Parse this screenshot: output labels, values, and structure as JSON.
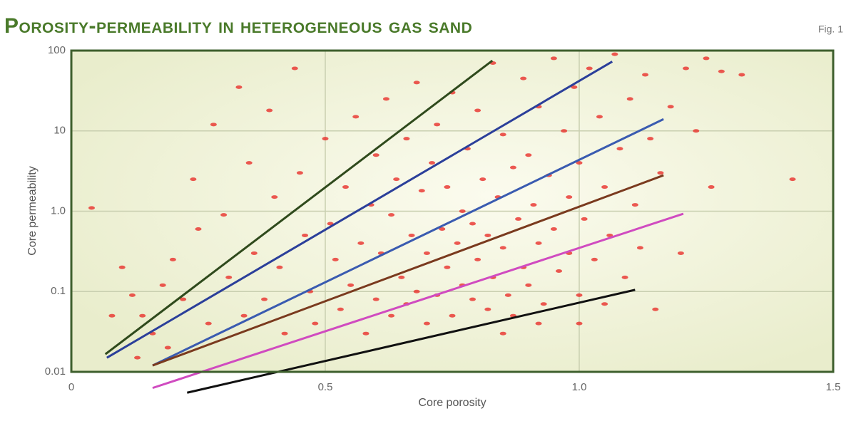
{
  "chart_data": {
    "type": "scatter",
    "title": "Porosity-permeability in heterogeneous gas sand",
    "figure_label": "Fig. 1",
    "x_label": "Core porosity",
    "y_label": "Core permeability",
    "xlim": [
      0,
      1.5
    ],
    "xticks": [
      0,
      0.5,
      {
        "value": 1,
        "label": "1.0"
      },
      {
        "value": 1.5,
        "label": "1.5"
      }
    ],
    "ylim": [
      0.01,
      100
    ],
    "yticks": [
      0.01,
      0.1,
      {
        "value": 1,
        "label": "1.0"
      },
      10,
      100
    ],
    "ylog": true,
    "grid": true,
    "series": [
      {
        "type": "scatter",
        "color": "#e8302a",
        "x": [
          0.04,
          0.1,
          0.12,
          0.14,
          0.16,
          0.18,
          0.2,
          0.22,
          0.24,
          0.25,
          0.27,
          0.28,
          0.3,
          0.31,
          0.33,
          0.34,
          0.35,
          0.36,
          0.38,
          0.39,
          0.4,
          0.41,
          0.42,
          0.44,
          0.45,
          0.46,
          0.47,
          0.48,
          0.5,
          0.51,
          0.52,
          0.53,
          0.54,
          0.55,
          0.56,
          0.57,
          0.58,
          0.59,
          0.6,
          0.6,
          0.61,
          0.62,
          0.63,
          0.63,
          0.64,
          0.65,
          0.66,
          0.66,
          0.67,
          0.68,
          0.68,
          0.69,
          0.7,
          0.7,
          0.71,
          0.72,
          0.72,
          0.73,
          0.74,
          0.74,
          0.75,
          0.75,
          0.76,
          0.77,
          0.77,
          0.78,
          0.79,
          0.79,
          0.8,
          0.8,
          0.81,
          0.82,
          0.82,
          0.83,
          0.83,
          0.84,
          0.85,
          0.85,
          0.86,
          0.87,
          0.87,
          0.88,
          0.89,
          0.89,
          0.9,
          0.9,
          0.91,
          0.92,
          0.92,
          0.93,
          0.94,
          0.95,
          0.95,
          0.96,
          0.97,
          0.98,
          0.98,
          0.99,
          1.0,
          1.0,
          1.01,
          1.02,
          1.03,
          1.04,
          1.05,
          1.06,
          1.07,
          1.08,
          1.09,
          1.1,
          1.11,
          1.12,
          1.13,
          1.14,
          1.15,
          1.16,
          1.18,
          1.2,
          1.21,
          1.23,
          1.25,
          1.28,
          1.32,
          1.42,
          1.26,
          0.08,
          0.13,
          0.19,
          0.85,
          0.92,
          1.0,
          1.05
        ],
        "values": [
          1.1,
          0.2,
          0.09,
          0.05,
          0.03,
          0.12,
          0.25,
          0.08,
          2.5,
          0.6,
          0.04,
          12,
          0.9,
          0.15,
          35,
          0.05,
          4,
          0.3,
          0.08,
          18,
          1.5,
          0.2,
          0.03,
          60,
          3,
          0.5,
          0.1,
          0.04,
          8,
          0.7,
          0.25,
          0.06,
          2,
          0.12,
          15,
          0.4,
          0.03,
          1.2,
          0.08,
          5,
          0.3,
          25,
          0.05,
          0.9,
          2.5,
          0.15,
          0.07,
          8,
          0.5,
          40,
          0.1,
          1.8,
          0.04,
          0.3,
          4,
          0.09,
          12,
          0.6,
          0.2,
          2,
          0.05,
          30,
          0.4,
          1,
          0.12,
          6,
          0.08,
          0.7,
          18,
          0.25,
          2.5,
          0.06,
          0.5,
          70,
          0.15,
          1.5,
          9,
          0.35,
          0.09,
          3.5,
          0.05,
          0.8,
          45,
          0.2,
          5,
          0.12,
          1.2,
          20,
          0.4,
          0.07,
          2.8,
          80,
          0.6,
          0.18,
          10,
          1.5,
          0.3,
          35,
          0.09,
          4,
          0.8,
          60,
          0.25,
          15,
          2,
          0.5,
          90,
          6,
          0.15,
          25,
          1.2,
          0.35,
          50,
          8,
          0.06,
          3,
          20,
          0.3,
          60,
          10,
          80,
          55,
          50,
          2.5,
          2,
          0.05,
          0.015,
          0.02,
          0.03,
          0.04,
          0.04,
          0.07
        ]
      },
      {
        "type": "line",
        "color": "#2f4a1c",
        "x": [
          0.067,
          0.829
        ],
        "values": [
          0.0166,
          75
        ]
      },
      {
        "type": "line",
        "color": "#2b3f9a",
        "x": [
          0.07,
          1.065
        ],
        "values": [
          0.015,
          73
        ]
      },
      {
        "type": "line",
        "color": "#3a5bb0",
        "x": [
          0.16,
          1.166
        ],
        "values": [
          0.012,
          14
        ]
      },
      {
        "type": "line",
        "color": "#7a3a1e",
        "x": [
          0.16,
          1.166
        ],
        "values": [
          0.012,
          2.8
        ]
      },
      {
        "type": "line",
        "color": "#d04bc0",
        "x": [
          0.16,
          1.205
        ],
        "values": [
          0.0063,
          0.93
        ]
      },
      {
        "type": "line",
        "color": "#111111",
        "x": [
          0.228,
          1.11
        ],
        "values": [
          0.0055,
          0.105
        ]
      }
    ]
  }
}
